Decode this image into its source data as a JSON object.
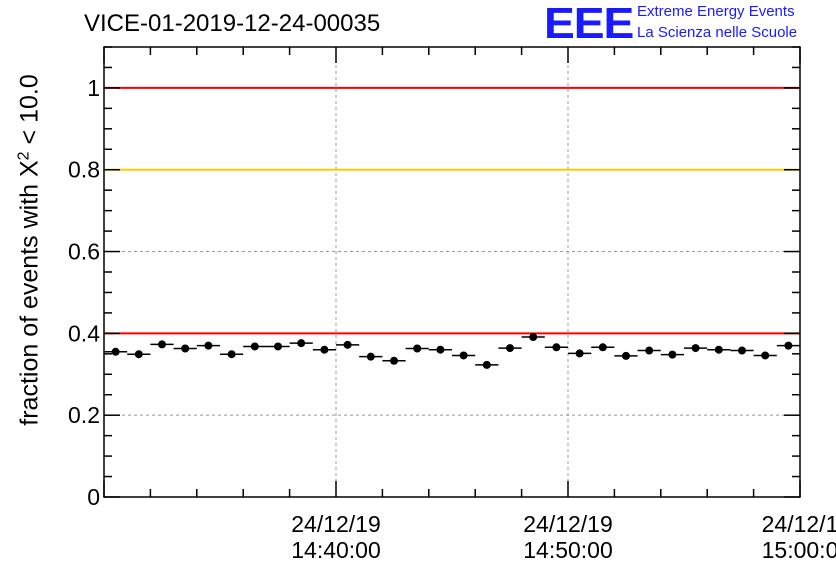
{
  "title": "VICE-01-2019-12-24-00035",
  "logo": {
    "mark": "EEE",
    "line1": "Extreme Energy Events",
    "line2": "La Scienza nelle Scuole",
    "color": "#1a1aff"
  },
  "chart_data": {
    "type": "scatter",
    "title": "VICE-01-2019-12-24-00035",
    "ylabel_prefix": "fraction of events with X",
    "ylabel_sup": "2",
    "ylabel_suffix": " < 10.0",
    "xlabel": "",
    "ylim": [
      0,
      1.1
    ],
    "yticks": [
      0,
      0.2,
      0.4,
      0.6,
      0.8,
      1
    ],
    "yticklabels": [
      "0",
      "0.2",
      "0.4",
      "0.6",
      "0.8",
      "1"
    ],
    "xlim_minutes": [
      30,
      60
    ],
    "xticks": [
      {
        "minute": 40,
        "date": "24/12/19",
        "time": "14:40:00"
      },
      {
        "minute": 50,
        "date": "24/12/19",
        "time": "14:50:00"
      },
      {
        "minute": 60,
        "date": "24/12/1",
        "time": "15:00:0"
      }
    ],
    "grid": true,
    "reference_lines": [
      {
        "y": 1.0,
        "color": "#ff0000"
      },
      {
        "y": 0.8,
        "color": "#ffcc00"
      },
      {
        "y": 0.4,
        "color": "#ff0000"
      }
    ],
    "bin_width_minutes": 1,
    "points_x_minutes": [
      30.5,
      31.5,
      32.5,
      33.5,
      34.5,
      35.5,
      36.5,
      37.5,
      38.5,
      39.5,
      40.5,
      41.5,
      42.5,
      43.5,
      44.5,
      45.5,
      46.5,
      47.5,
      48.5,
      49.5,
      50.5,
      51.5,
      52.5,
      53.5,
      54.5,
      55.5,
      56.5,
      57.5,
      58.5,
      59.5
    ],
    "points_y": [
      0.355,
      0.349,
      0.373,
      0.363,
      0.37,
      0.349,
      0.368,
      0.368,
      0.376,
      0.36,
      0.372,
      0.343,
      0.333,
      0.363,
      0.36,
      0.346,
      0.323,
      0.364,
      0.391,
      0.366,
      0.351,
      0.366,
      0.345,
      0.358,
      0.348,
      0.364,
      0.36,
      0.358,
      0.346,
      0.37
    ],
    "error_y": 0.007,
    "marker_color": "#000000"
  }
}
